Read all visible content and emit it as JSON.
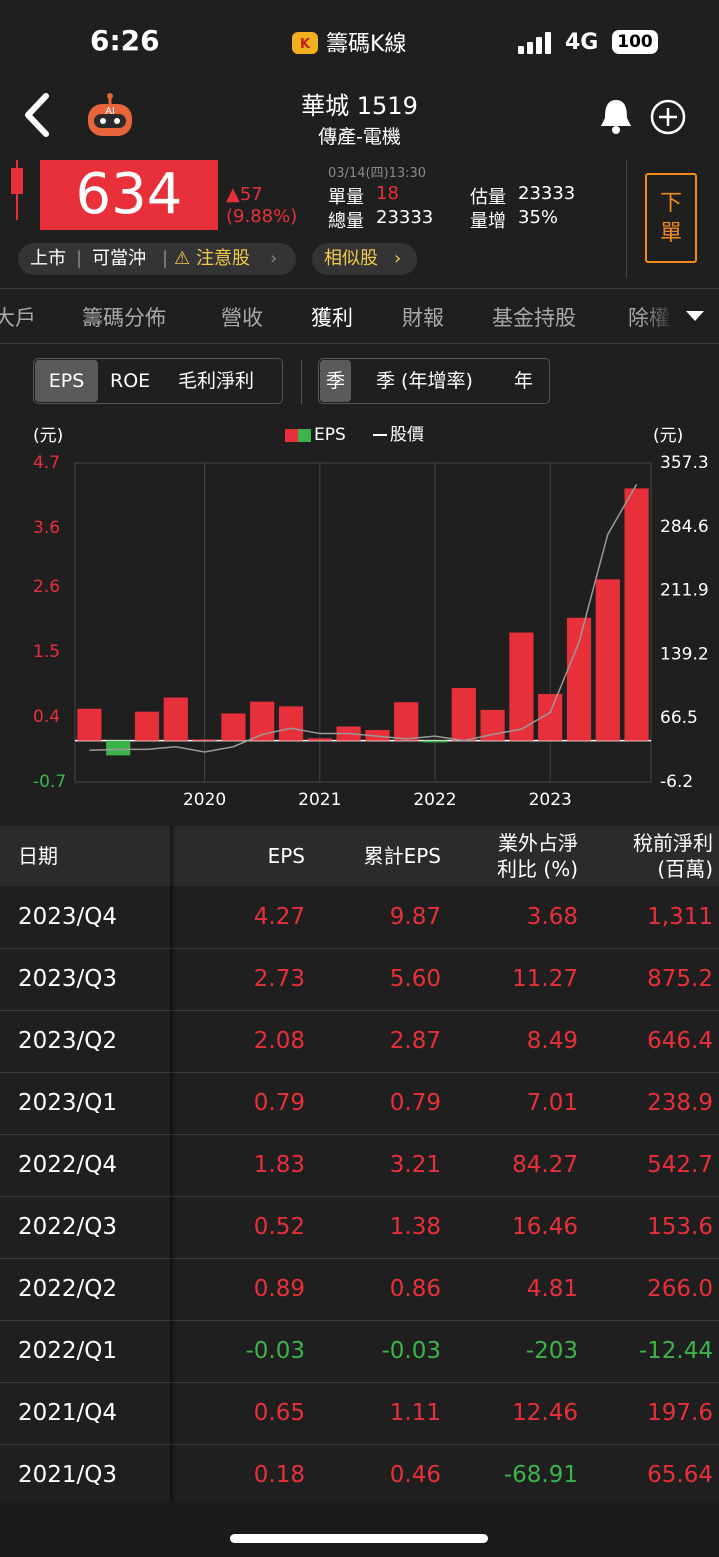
{
  "status_bar": {
    "time": "6:26",
    "app": "籌碼K線",
    "network": "4G",
    "battery": "100"
  },
  "header": {
    "title": "華城 1519",
    "subtitle": "傳產-電機"
  },
  "quote": {
    "price": "634",
    "change": "▲57",
    "change_pct": "(9.88%)",
    "datetime": "03/14(四)13:30",
    "unit_volume_label": "單量",
    "unit_volume": "18",
    "total_volume_label": "總量",
    "total_volume": "23333",
    "est_volume_label": "估量",
    "est_volume": "23333",
    "volume_increase_label": "量增",
    "volume_increase": "35%",
    "order_button": "下單"
  },
  "tags": [
    "上市",
    "可當沖",
    "注意股"
  ],
  "similar": "相似股",
  "tabs": [
    "大戶",
    "籌碼分佈",
    "營收",
    "獲利",
    "財報",
    "基金持股",
    "除權"
  ],
  "metric_toggle": [
    "EPS",
    "ROE",
    "毛利淨利"
  ],
  "period_toggle": [
    "季",
    "季 (年增率)",
    "年"
  ],
  "chart_data": {
    "type": "bar",
    "y_label": "(元)",
    "y2_label": "(元)",
    "categories": [
      null,
      null,
      null,
      null,
      "2020",
      null,
      null,
      null,
      "2021",
      null,
      null,
      null,
      "2022",
      null,
      null,
      null,
      "2023",
      null,
      null,
      null
    ],
    "series": [
      {
        "name": "EPS",
        "type": "bar",
        "color": "#e8303a",
        "negative_color": "#3cb44a",
        "values": [
          0.54,
          -0.25,
          0.49,
          0.73,
          0.02,
          0.46,
          0.66,
          0.58,
          0.04,
          0.24,
          0.18,
          0.65,
          -0.03,
          0.89,
          0.52,
          1.83,
          0.79,
          2.08,
          2.73,
          4.27
        ]
      },
      {
        "name": "股價",
        "type": "line",
        "color": "#9a9a9a",
        "axis": "y2",
        "values": [
          30,
          31,
          31,
          34,
          28,
          34,
          48,
          55,
          49,
          49,
          46,
          43,
          46,
          41,
          48,
          54,
          73,
          153,
          276,
          333
        ]
      }
    ],
    "ylim": [
      -0.7,
      4.7
    ],
    "yticks": [
      4.7,
      3.6,
      2.6,
      1.5,
      0.4,
      -0.7
    ],
    "y2lim": [
      -6.2,
      357.3
    ],
    "y2ticks": [
      357.3,
      284.6,
      211.9,
      139.2,
      66.5,
      -6.2
    ],
    "grid": true
  },
  "table": {
    "columns": [
      [
        "日期"
      ],
      [
        "EPS"
      ],
      [
        "累計EPS"
      ],
      [
        "業外占淨",
        "利比 (%)"
      ],
      [
        "稅前淨利",
        "(百萬)"
      ]
    ],
    "rows": [
      [
        "2023/Q4",
        "4.27",
        "9.87",
        "3.68",
        "1,311"
      ],
      [
        "2023/Q3",
        "2.73",
        "5.60",
        "11.27",
        "875.2"
      ],
      [
        "2023/Q2",
        "2.08",
        "2.87",
        "8.49",
        "646.4"
      ],
      [
        "2023/Q1",
        "0.79",
        "0.79",
        "7.01",
        "238.9"
      ],
      [
        "2022/Q4",
        "1.83",
        "3.21",
        "84.27",
        "542.7"
      ],
      [
        "2022/Q3",
        "0.52",
        "1.38",
        "16.46",
        "153.6"
      ],
      [
        "2022/Q2",
        "0.89",
        "0.86",
        "4.81",
        "266.0"
      ],
      [
        "2022/Q1",
        "-0.03",
        "-0.03",
        "-203",
        "-12.44"
      ],
      [
        "2021/Q4",
        "0.65",
        "1.11",
        "12.46",
        "197.6"
      ],
      [
        "2021/Q3",
        "0.18",
        "0.46",
        "-68.91",
        "65.64"
      ]
    ]
  }
}
